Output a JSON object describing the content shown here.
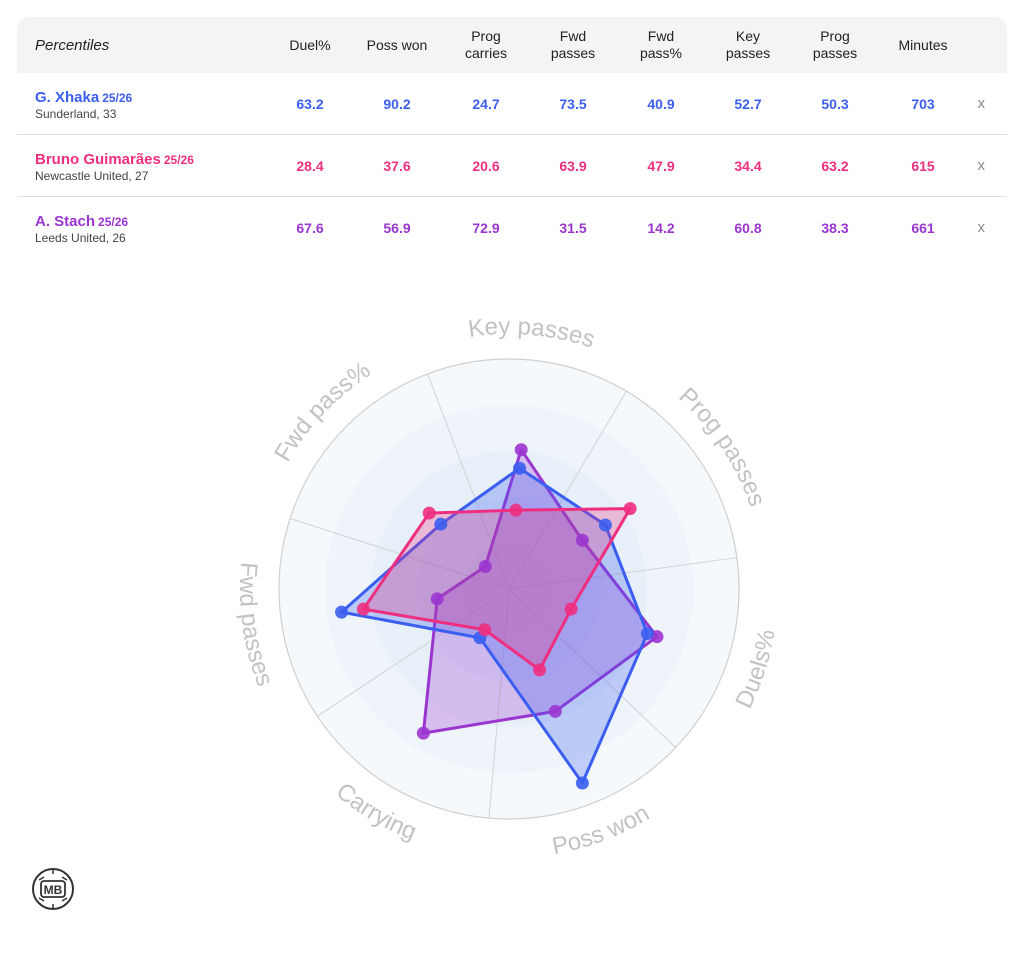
{
  "table": {
    "header_label": "Percentiles",
    "columns": [
      {
        "line1": "Duel%",
        "line2": ""
      },
      {
        "line1": "Poss won",
        "line2": ""
      },
      {
        "line1": "Prog",
        "line2": "carries"
      },
      {
        "line1": "Fwd",
        "line2": "passes"
      },
      {
        "line1": "Fwd",
        "line2": "pass%"
      },
      {
        "line1": "Key",
        "line2": "passes"
      },
      {
        "line1": "Prog",
        "line2": "passes"
      },
      {
        "line1": "Minutes",
        "line2": ""
      }
    ],
    "rows": [
      {
        "name": "G. Xhaka",
        "season": "25/26",
        "team": "Sunderland, 33",
        "color": "#3b5ef0",
        "values": [
          "63.2",
          "90.2",
          "24.7",
          "73.5",
          "40.9",
          "52.7",
          "50.3",
          "703"
        ],
        "remove": "x"
      },
      {
        "name": "Bruno Guimarães",
        "season": "25/26",
        "team": "Newcastle United, 27",
        "color": "#ee2f7f",
        "values": [
          "28.4",
          "37.6",
          "20.6",
          "63.9",
          "47.9",
          "34.4",
          "63.2",
          "615"
        ],
        "remove": "x"
      },
      {
        "name": "A. Stach",
        "season": "25/26",
        "team": "Leeds United, 26",
        "color": "#9b35d0",
        "values": [
          "67.6",
          "56.9",
          "72.9",
          "31.5",
          "14.2",
          "60.8",
          "38.3",
          "661"
        ],
        "remove": "x"
      }
    ]
  },
  "chart_data": {
    "type": "radar",
    "axes": [
      "Key passes",
      "Prog passes",
      "Duels%",
      "Poss won",
      "Carrying",
      "Fwd passes",
      "Fwd pass%"
    ],
    "range": [
      0,
      100
    ],
    "grid": true,
    "series": [
      {
        "name": "G. Xhaka",
        "color": "#3b5ef0",
        "values": [
          52.7,
          50.3,
          63.2,
          90.2,
          24.7,
          73.5,
          40.9
        ]
      },
      {
        "name": "Bruno Guimarães",
        "color": "#ee2f7f",
        "values": [
          34.4,
          63.2,
          28.4,
          37.6,
          20.6,
          63.9,
          47.9
        ]
      },
      {
        "name": "A. Stach",
        "color": "#9b35d0",
        "values": [
          60.8,
          38.3,
          67.6,
          56.9,
          72.9,
          31.5,
          14.2
        ]
      }
    ]
  },
  "logo": {
    "text": "MB",
    "icon": "mb-logo-icon"
  }
}
